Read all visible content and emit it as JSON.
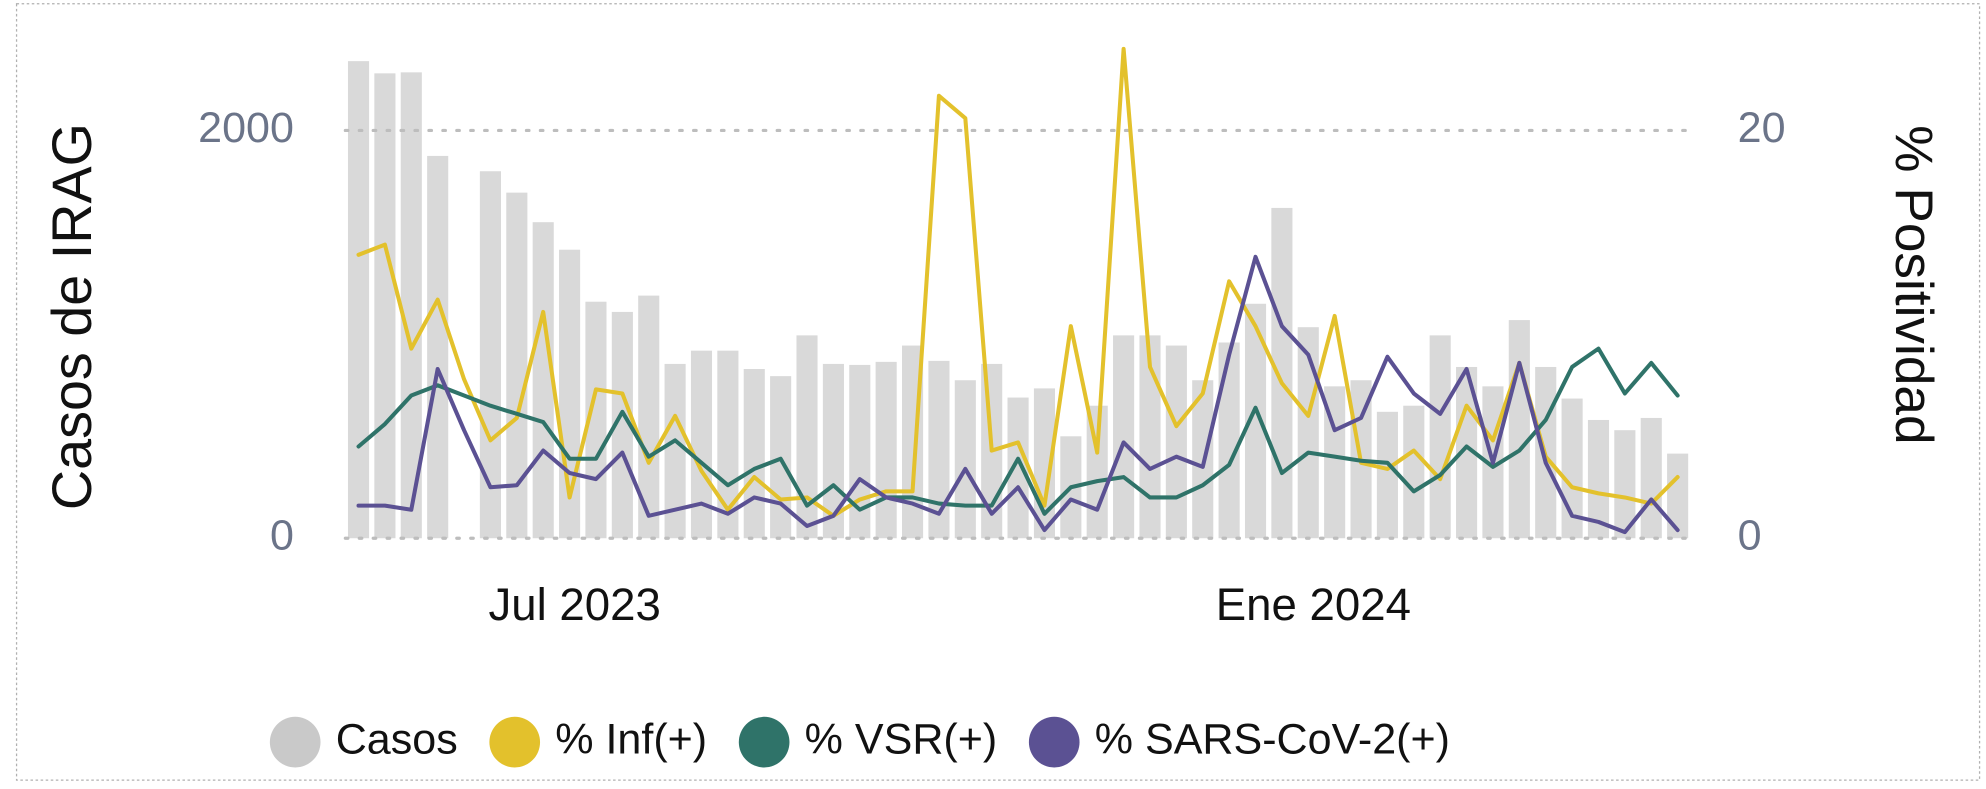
{
  "chart_data": {
    "type": "combo",
    "y_label": "Casos de IRAG",
    "y2_label": "% Positividad",
    "categories": [
      null,
      null,
      null,
      null,
      null,
      null,
      null,
      null,
      "Jul 2023",
      null,
      null,
      null,
      null,
      null,
      null,
      null,
      null,
      null,
      null,
      null,
      null,
      null,
      null,
      null,
      null,
      null,
      null,
      null,
      null,
      null,
      null,
      null,
      null,
      null,
      null,
      null,
      "Ene 2024",
      null,
      null,
      null,
      null,
      null,
      null,
      null,
      null,
      null,
      null,
      null,
      null,
      null,
      null
    ],
    "ylim": [
      0,
      2400
    ],
    "yticks": [
      0,
      2000
    ],
    "y2lim": [
      0,
      24
    ],
    "y2ticks": [
      0,
      20
    ],
    "grid": true,
    "legend": "bottom",
    "series": [
      {
        "name": "Casos",
        "type": "bar",
        "color": "#d9d9d9",
        "values": [
          2340,
          2280,
          2285,
          1875,
          null,
          1800,
          1695,
          1550,
          1415,
          1160,
          1110,
          1190,
          855,
          920,
          920,
          830,
          795,
          995,
          855,
          850,
          865,
          945,
          870,
          775,
          855,
          690,
          735,
          500,
          650,
          995,
          995,
          945,
          775,
          960,
          1150,
          1620,
          1035,
          745,
          775,
          620,
          650,
          995,
          840,
          745,
          1070,
          840,
          685,
          580,
          530,
          590,
          415
        ]
      },
      {
        "name": "% Inf(+)",
        "type": "line",
        "axis": "y2",
        "color": "#e3c12c",
        "values": [
          13.9,
          14.4,
          9.3,
          11.7,
          7.8,
          4.8,
          5.9,
          11.1,
          2.0,
          7.3,
          7.1,
          3.7,
          6.0,
          3.3,
          1.4,
          3.0,
          1.9,
          2.0,
          1.1,
          1.9,
          2.3,
          2.3,
          21.7,
          20.6,
          4.3,
          4.7,
          1.6,
          10.4,
          4.2,
          24.0,
          8.4,
          5.5,
          7.1,
          12.6,
          10.4,
          7.6,
          6.0,
          10.9,
          3.7,
          3.4,
          4.3,
          2.9,
          6.5,
          4.8,
          8.6,
          4.0,
          2.5,
          2.2,
          2.0,
          1.7,
          3.0
        ]
      },
      {
        "name": "% VSR(+)",
        "type": "line",
        "axis": "y2",
        "color": "#2f7369",
        "values": [
          4.5,
          5.6,
          7.0,
          7.5,
          7.0,
          6.5,
          6.1,
          5.7,
          3.9,
          3.9,
          6.2,
          4.0,
          4.8,
          3.7,
          2.6,
          3.4,
          3.9,
          1.6,
          2.6,
          1.4,
          2.0,
          2.0,
          1.7,
          1.6,
          1.6,
          3.9,
          1.2,
          2.5,
          2.8,
          3.0,
          2.0,
          2.0,
          2.6,
          3.6,
          6.4,
          3.2,
          4.2,
          4.0,
          3.8,
          3.7,
          2.3,
          3.1,
          4.5,
          3.5,
          4.3,
          5.8,
          8.4,
          9.3,
          7.1,
          8.6,
          7.0
        ]
      },
      {
        "name": "% SARS-CoV-2(+)",
        "type": "line",
        "axis": "y2",
        "color": "#5b5193",
        "values": [
          1.6,
          1.6,
          1.4,
          8.3,
          5.3,
          2.5,
          2.6,
          4.3,
          3.2,
          2.9,
          4.2,
          1.1,
          1.4,
          1.7,
          1.2,
          2.0,
          1.7,
          0.6,
          1.1,
          2.9,
          2.0,
          1.7,
          1.2,
          3.4,
          1.2,
          2.5,
          0.4,
          1.9,
          1.4,
          4.7,
          3.4,
          4.0,
          3.5,
          9.0,
          13.8,
          10.4,
          9.0,
          5.3,
          5.9,
          8.9,
          7.1,
          6.1,
          8.3,
          3.7,
          8.6,
          3.7,
          1.1,
          0.8,
          0.3,
          1.9,
          0.4
        ]
      }
    ]
  }
}
